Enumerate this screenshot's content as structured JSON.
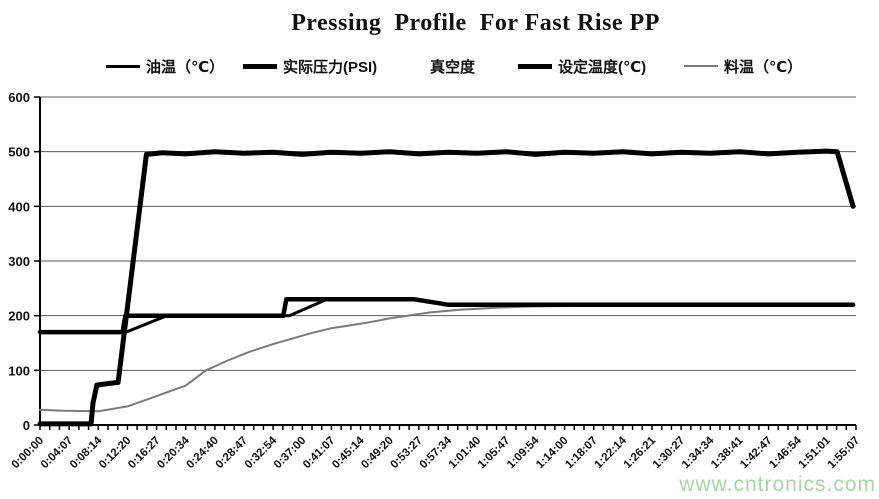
{
  "title": "Pressing  Profile  For Fast Rise PP",
  "watermark": "www.cntronics.com",
  "colors": {
    "background": "#ffffff",
    "axis": "#000000",
    "gridline": "#5a5a5a",
    "tick_label": "#111111",
    "watermark_green": "#9fd19f"
  },
  "legend": {
    "position": "top",
    "items": [
      {
        "label": "油温（℃）",
        "line_color": "#000000",
        "line_weight": 3
      },
      {
        "label": "实际压力(PSI)",
        "line_color": "#000000",
        "line_weight": 5
      },
      {
        "label": "真空度",
        "line_color": "#ffffff",
        "line_weight": 3
      },
      {
        "label": "设定温度(℃)",
        "line_color": "#000000",
        "line_weight": 5
      },
      {
        "label": "料温（℃）",
        "line_color": "#7a7a7a",
        "line_weight": 2
      }
    ]
  },
  "chart_data": {
    "type": "line",
    "title": "Pressing  Profile  For Fast Rise PP",
    "xlabel": "",
    "ylabel": "",
    "grid": true,
    "legend_position": "top",
    "x_axis": {
      "unit": "h:mm:ss",
      "minor_ticks_per_label_interval": 3,
      "labels": [
        "0:00:00",
        "0:04:07",
        "0:08:14",
        "0:12:20",
        "0:16:27",
        "0:20:34",
        "0:24:40",
        "0:28:47",
        "0:32:54",
        "0:37:00",
        "0:41:07",
        "0:45:14",
        "0:49:20",
        "0:53:27",
        "0:57:34",
        "1:01:40",
        "1:05:47",
        "1:09:54",
        "1:14:00",
        "1:18:07",
        "1:22:14",
        "1:26:21",
        "1:30:27",
        "1:34:34",
        "1:38:41",
        "1:42:47",
        "1:46:54",
        "1:51:01",
        "1:55:07"
      ]
    },
    "y_axis": {
      "min": 0,
      "max": 600,
      "ticks": [
        0,
        100,
        200,
        300,
        400,
        500,
        600
      ]
    },
    "series_x_unit": "label_index",
    "series": [
      {
        "name": "油温（℃）",
        "color": "#000000",
        "width": 3,
        "points": [
          [
            0,
            170
          ],
          [
            2.95,
            170
          ],
          [
            4.35,
            200
          ],
          [
            8.55,
            200
          ],
          [
            9.85,
            230
          ],
          [
            12.85,
            230
          ],
          [
            14.0,
            220
          ],
          [
            27.9,
            220
          ]
        ]
      },
      {
        "name": "实际压力(PSI)",
        "color": "#000000",
        "width": 5,
        "points": [
          [
            0,
            2
          ],
          [
            1.75,
            2
          ],
          [
            1.82,
            40
          ],
          [
            1.95,
            73
          ],
          [
            2.35,
            76
          ],
          [
            2.68,
            78
          ],
          [
            3.65,
            495
          ],
          [
            4.2,
            498
          ],
          [
            5,
            496
          ],
          [
            6,
            500
          ],
          [
            7,
            497
          ],
          [
            8,
            499
          ],
          [
            9,
            495
          ],
          [
            10,
            499
          ],
          [
            11,
            497
          ],
          [
            12,
            500
          ],
          [
            13,
            496
          ],
          [
            14,
            499
          ],
          [
            15,
            497
          ],
          [
            16,
            500
          ],
          [
            17,
            495
          ],
          [
            18,
            499
          ],
          [
            19,
            497
          ],
          [
            20,
            500
          ],
          [
            21,
            496
          ],
          [
            22,
            499
          ],
          [
            23,
            497
          ],
          [
            24,
            500
          ],
          [
            25,
            496
          ],
          [
            26,
            499
          ],
          [
            27,
            501
          ],
          [
            27.35,
            500
          ],
          [
            27.9,
            400
          ]
        ]
      },
      {
        "name": "真空度",
        "color": "#ffffff",
        "width": 3,
        "points": []
      },
      {
        "name": "设定温度(℃)",
        "color": "#000000",
        "width": 4.5,
        "points": [
          [
            0,
            170
          ],
          [
            2.83,
            170
          ],
          [
            2.93,
            200
          ],
          [
            8.35,
            200
          ],
          [
            8.45,
            230
          ],
          [
            12.85,
            230
          ],
          [
            14.0,
            220
          ],
          [
            27.9,
            220
          ]
        ]
      },
      {
        "name": "料温（℃）",
        "color": "#7a7a7a",
        "width": 2,
        "points": [
          [
            0,
            28
          ],
          [
            0.8,
            26
          ],
          [
            2,
            25
          ],
          [
            3,
            34
          ],
          [
            3.8,
            49
          ],
          [
            5,
            72
          ],
          [
            5.7,
            100
          ],
          [
            6.4,
            117
          ],
          [
            7.2,
            134
          ],
          [
            8,
            148
          ],
          [
            9.3,
            168
          ],
          [
            10,
            177
          ],
          [
            11.1,
            186
          ],
          [
            12,
            195
          ],
          [
            12.6,
            200
          ],
          [
            13.4,
            206
          ],
          [
            14.4,
            211
          ],
          [
            15.8,
            215
          ],
          [
            17,
            217
          ],
          [
            19,
            218
          ],
          [
            22,
            219
          ],
          [
            25,
            219
          ],
          [
            27.9,
            219
          ]
        ]
      }
    ]
  }
}
